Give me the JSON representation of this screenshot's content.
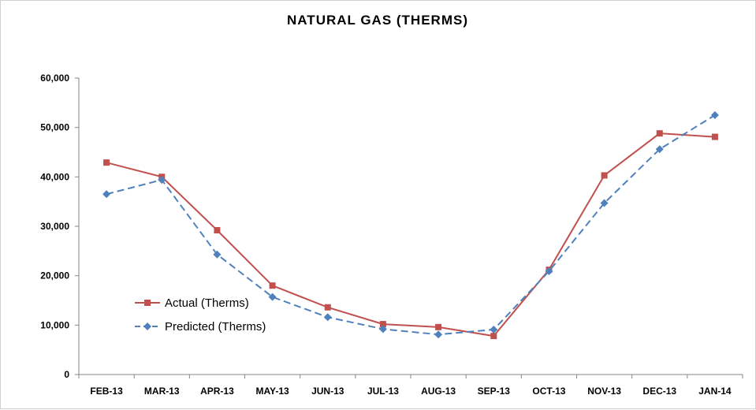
{
  "chart_data": {
    "type": "line",
    "title": "NATURAL GAS (THERMS)",
    "xlabel": "",
    "ylabel": "",
    "categories": [
      "FEB-13",
      "MAR-13",
      "APR-13",
      "MAY-13",
      "JUN-13",
      "JUL-13",
      "AUG-13",
      "SEP-13",
      "OCT-13",
      "NOV-13",
      "DEC-13",
      "JAN-14"
    ],
    "ylim": [
      0,
      60000
    ],
    "yticks": [
      0,
      10000,
      20000,
      30000,
      40000,
      50000,
      60000
    ],
    "ytick_labels": [
      "0",
      "10,000",
      "20,000",
      "30,000",
      "40,000",
      "50,000",
      "60,000"
    ],
    "grid": false,
    "legend_position": "left-middle",
    "series": [
      {
        "name": "Actual (Therms)",
        "color": "#c0504d",
        "marker": "square",
        "line_style": "solid",
        "values": [
          42900,
          40000,
          29200,
          18000,
          13600,
          10200,
          9600,
          7800,
          21200,
          40300,
          48800,
          48100
        ]
      },
      {
        "name": "Predicted (Therms)",
        "color": "#4f81bd",
        "marker": "diamond",
        "line_style": "dashed",
        "values": [
          36500,
          39400,
          24300,
          15700,
          11600,
          9200,
          8100,
          9100,
          20900,
          34700,
          45600,
          52500
        ]
      }
    ]
  }
}
